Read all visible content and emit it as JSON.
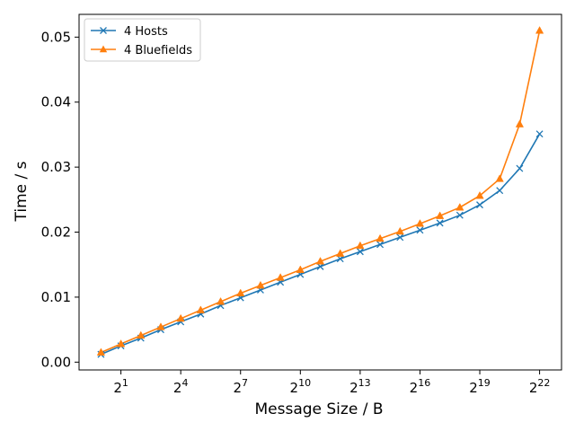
{
  "chart_data": {
    "type": "line",
    "xlabel": "Message Size / B",
    "ylabel": "Time / s",
    "x_scale": "log2",
    "x": [
      1,
      2,
      4,
      8,
      16,
      32,
      64,
      128,
      256,
      512,
      1024,
      2048,
      4096,
      8192,
      16384,
      32768,
      65536,
      131072,
      262144,
      524288,
      1048576,
      2097152,
      4194304
    ],
    "x_ticks": [
      {
        "value": 2,
        "base": "2",
        "exp": "1"
      },
      {
        "value": 16,
        "base": "2",
        "exp": "4"
      },
      {
        "value": 128,
        "base": "2",
        "exp": "7"
      },
      {
        "value": 1024,
        "base": "2",
        "exp": "10"
      },
      {
        "value": 8192,
        "base": "2",
        "exp": "13"
      },
      {
        "value": 65536,
        "base": "2",
        "exp": "16"
      },
      {
        "value": 524288,
        "base": "2",
        "exp": "19"
      },
      {
        "value": 4194304,
        "base": "2",
        "exp": "22"
      }
    ],
    "y_ticks": [
      {
        "value": 0.0,
        "label": "0.00"
      },
      {
        "value": 0.01,
        "label": "0.01"
      },
      {
        "value": 0.02,
        "label": "0.02"
      },
      {
        "value": 0.03,
        "label": "0.03"
      },
      {
        "value": 0.04,
        "label": "0.04"
      },
      {
        "value": 0.05,
        "label": "0.05"
      }
    ],
    "ylim": [
      -0.0012,
      0.0535
    ],
    "xlim_log2": [
      -1.1,
      23.1
    ],
    "grid": false,
    "legend": "top-left",
    "series": [
      {
        "name": "4 Hosts",
        "color": "#1f77b4",
        "marker": "x",
        "values": [
          0.0012,
          0.0025,
          0.0037,
          0.005,
          0.0062,
          0.0074,
          0.0087,
          0.0099,
          0.0111,
          0.0123,
          0.0135,
          0.0147,
          0.0159,
          0.017,
          0.0181,
          0.0192,
          0.0203,
          0.0214,
          0.0226,
          0.0242,
          0.0264,
          0.0298,
          0.0351
        ]
      },
      {
        "name": "4 Bluefields",
        "color": "#ff7f0e",
        "marker": "triangle",
        "values": [
          0.0015,
          0.0028,
          0.0041,
          0.0054,
          0.0067,
          0.008,
          0.0093,
          0.0106,
          0.0118,
          0.013,
          0.0142,
          0.0155,
          0.0167,
          0.0179,
          0.019,
          0.0201,
          0.0213,
          0.0225,
          0.0238,
          0.0256,
          0.0282,
          0.0366,
          0.051
        ]
      }
    ]
  }
}
